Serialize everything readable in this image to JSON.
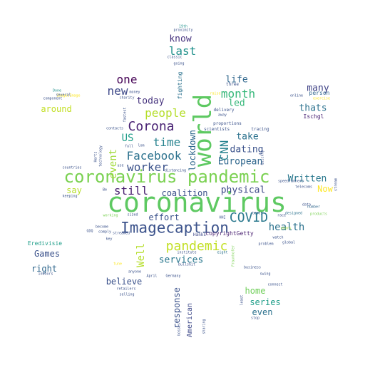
{
  "colors": {
    "background": "#ffffff",
    "palette": [
      "#440154",
      "#3b528b",
      "#21918c",
      "#5ec962",
      "#fde725"
    ]
  },
  "words": [
    {
      "text": "coronavirus",
      "color": "#5ec962"
    },
    {
      "text": "coronavirus pandemic",
      "color": "#7ad151"
    },
    {
      "text": "world",
      "color": "#5ec962"
    },
    {
      "text": "Imagecaption",
      "color": "#3b528b"
    },
    {
      "text": "pandemic",
      "color": "#c2df23"
    },
    {
      "text": "Corona",
      "color": "#482173"
    },
    {
      "text": "Facebook",
      "color": "#2c728e"
    },
    {
      "text": "people",
      "color": "#b5de2b"
    },
    {
      "text": "COVID",
      "color": "#2a788e"
    },
    {
      "text": "month",
      "color": "#35b779"
    },
    {
      "text": "worker",
      "color": "#3b528b"
    },
    {
      "text": "still",
      "color": "#481f70"
    },
    {
      "text": "time",
      "color": "#26828e"
    },
    {
      "text": "one",
      "color": "#440154"
    },
    {
      "text": "new",
      "color": "#3e4989"
    },
    {
      "text": "last",
      "color": "#21918c"
    },
    {
      "text": "US",
      "color": "#1f9e89"
    },
    {
      "text": "event",
      "color": "#a0da39"
    },
    {
      "text": "health",
      "color": "#2c728e"
    },
    {
      "text": "European",
      "color": "#31688e"
    },
    {
      "text": "Written",
      "color": "#2a788e"
    },
    {
      "text": "physical",
      "color": "#3e4989"
    },
    {
      "text": "CNN",
      "color": "#26828e"
    },
    {
      "text": "dating",
      "color": "#3b528b"
    },
    {
      "text": "take",
      "color": "#2c728e"
    },
    {
      "text": "life",
      "color": "#31688e"
    },
    {
      "text": "led",
      "color": "#35b779"
    },
    {
      "text": "today",
      "color": "#46337e"
    },
    {
      "text": "know",
      "color": "#46337e"
    },
    {
      "text": "many",
      "color": "#414487"
    },
    {
      "text": "thats",
      "color": "#2c728e"
    },
    {
      "text": "coalition",
      "color": "#3b528b"
    },
    {
      "text": "effort",
      "color": "#3b528b"
    },
    {
      "text": "services",
      "color": "#2a788e"
    },
    {
      "text": "Well",
      "color": "#b5de2b"
    },
    {
      "text": "lockdown",
      "color": "#31688e"
    },
    {
      "text": "believe",
      "color": "#3b528b"
    },
    {
      "text": "home",
      "color": "#6ece58"
    },
    {
      "text": "series",
      "color": "#1f9e89"
    },
    {
      "text": "even",
      "color": "#2c728e"
    },
    {
      "text": "response",
      "color": "#3b528b"
    },
    {
      "text": "American",
      "color": "#3e4989"
    },
    {
      "text": "Games",
      "color": "#3b528b"
    },
    {
      "text": "right",
      "color": "#31688e"
    },
    {
      "text": "say",
      "color": "#b5de2b"
    },
    {
      "text": "around",
      "color": "#c2df23"
    },
    {
      "text": "Now",
      "color": "#fde725"
    },
    {
      "text": "Eredivisie",
      "color": "#1f9e89"
    },
    {
      "text": "fighting",
      "color": "#2c728e"
    },
    {
      "text": "copyrightGetty",
      "color": "#481f70"
    },
    {
      "text": "Hanks",
      "color": "#3e4989"
    },
    {
      "text": "person",
      "color": "#31688e"
    },
    {
      "text": "Ischgl",
      "color": "#482173"
    },
    {
      "text": "scientists",
      "color": "#3b528b"
    },
    {
      "text": "three",
      "color": "#3b528b"
    },
    {
      "text": "delivery",
      "color": "#3b528b"
    },
    {
      "text": "proportions",
      "color": "#3b528b"
    },
    {
      "text": "tracing",
      "color": "#3b528b"
    },
    {
      "text": "speedrunners",
      "color": "#3b528b"
    },
    {
      "text": "telecoms",
      "color": "#3b528b"
    },
    {
      "text": "products",
      "color": "#7ad151"
    },
    {
      "text": "designed",
      "color": "#2c728e"
    },
    {
      "text": "number",
      "color": "#31688e"
    },
    {
      "text": "years",
      "color": "#a0da39"
    },
    {
      "text": "watch",
      "color": "#3b528b"
    },
    {
      "text": "global",
      "color": "#3b528b"
    },
    {
      "text": "problem",
      "color": "#3b528b"
    },
    {
      "text": "race",
      "color": "#3b528b"
    },
    {
      "text": "business",
      "color": "#3b528b"
    },
    {
      "text": "eight",
      "color": "#2c728e"
    },
    {
      "text": "HHI",
      "color": "#3b528b"
    },
    {
      "text": "institute",
      "color": "#3b528b"
    },
    {
      "text": "bullshit",
      "color": "#3b528b"
    },
    {
      "text": "Fraunhofer",
      "color": "#7ad151"
    },
    {
      "text": "April",
      "color": "#3b528b"
    },
    {
      "text": "Germany",
      "color": "#3b528b"
    },
    {
      "text": "retailers",
      "color": "#3b528b"
    },
    {
      "text": "selling",
      "color": "#3b528b"
    },
    {
      "text": "anyone",
      "color": "#3b528b"
    },
    {
      "text": "tune",
      "color": "#fde725"
    },
    {
      "text": "key",
      "color": "#3b528b"
    },
    {
      "text": "streamed",
      "color": "#3b528b"
    },
    {
      "text": "comply",
      "color": "#3b528b"
    },
    {
      "text": "become",
      "color": "#3b528b"
    },
    {
      "text": "GDQ",
      "color": "#3b528b"
    },
    {
      "text": "sized",
      "color": "#3b528b"
    },
    {
      "text": "working",
      "color": "#7ad151"
    },
    {
      "text": "keeping",
      "color": "#3b528b"
    },
    {
      "text": "Be",
      "color": "#3b528b"
    },
    {
      "text": "countries",
      "color": "#3b528b"
    },
    {
      "text": "technology",
      "color": "#3b528b"
    },
    {
      "text": "Hertz",
      "color": "#3b528b"
    },
    {
      "text": "use",
      "color": "#3b528b"
    },
    {
      "text": "full",
      "color": "#3b528b"
    },
    {
      "text": "contacts",
      "color": "#3b528b"
    },
    {
      "text": "fastest",
      "color": "#3b528b"
    },
    {
      "text": "money",
      "color": "#3b528b"
    },
    {
      "text": "charity",
      "color": "#3b528b"
    },
    {
      "text": "ImagesImage",
      "color": "#fde725"
    },
    {
      "text": "component",
      "color": "#3b528b"
    },
    {
      "text": "several",
      "color": "#3b528b"
    },
    {
      "text": "Done",
      "color": "#21918c"
    },
    {
      "text": "classic",
      "color": "#3b528b"
    },
    {
      "text": "going",
      "color": "#3b528b"
    },
    {
      "text": "proximity",
      "color": "#3b528b"
    },
    {
      "text": "19th",
      "color": "#21918c"
    },
    {
      "text": "raise",
      "color": "#fde725"
    },
    {
      "text": "away",
      "color": "#3b528b"
    },
    {
      "text": "lom",
      "color": "#3b528b"
    },
    {
      "text": "distancing",
      "color": "#3b528b"
    },
    {
      "text": "stop",
      "color": "#3b528b"
    },
    {
      "text": "swing",
      "color": "#3b528b"
    },
    {
      "text": "sharing",
      "color": "#3b528b"
    },
    {
      "text": "least",
      "color": "#3b528b"
    },
    {
      "text": "bosses",
      "color": "#3b528b"
    },
    {
      "text": "online",
      "color": "#3b528b"
    },
    {
      "text": "Quickly",
      "color": "#3b528b"
    },
    {
      "text": "data",
      "color": "#3b528b"
    },
    {
      "text": "tests",
      "color": "#3b528b"
    },
    {
      "text": "connect",
      "color": "#3b528b"
    },
    {
      "text": "indoors",
      "color": "#3b528b"
    },
    {
      "text": "exercise",
      "color": "#fde725"
    },
    {
      "text": "stream",
      "color": "#3b528b"
    }
  ]
}
